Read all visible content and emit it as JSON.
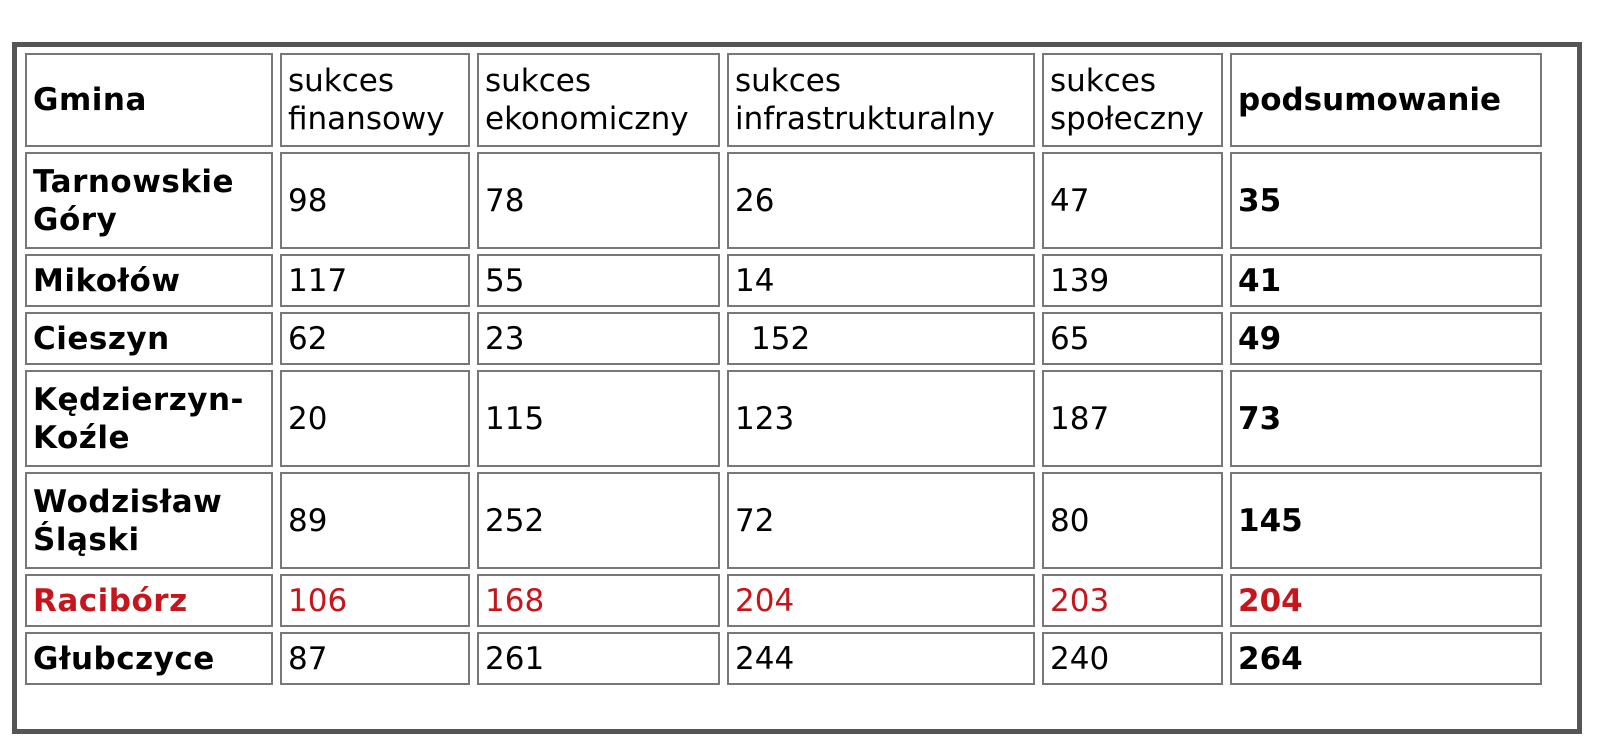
{
  "table": {
    "headers": [
      "Gmina",
      "sukces finansowy",
      "sukces ekonomiczny",
      "sukces infrastrukturalny",
      "sukces społeczny",
      "podsumowanie"
    ],
    "header_lines": {
      "c1": [
        "sukces",
        "finansowy"
      ],
      "c2": [
        "sukces",
        "ekonomiczny"
      ],
      "c3": [
        "sukces",
        "infrastrukturalny"
      ],
      "c4": [
        "sukces",
        "społeczny"
      ]
    },
    "rows": [
      {
        "gmina": [
          "Tarnowskie",
          "Góry"
        ],
        "finansowy": "98",
        "ekonomiczny": "78",
        "infrastrukturalny": "26",
        "spoleczny": "47",
        "podsumowanie": "35"
      },
      {
        "gmina": [
          "Mikołów"
        ],
        "finansowy": "117",
        "ekonomiczny": "55",
        "infrastrukturalny": "14",
        "spoleczny": "139",
        "podsumowanie": "41"
      },
      {
        "gmina": [
          "Cieszyn"
        ],
        "finansowy": "62",
        "ekonomiczny": "23",
        "infrastrukturalny": "152",
        "spoleczny": "65",
        "podsumowanie": "49"
      },
      {
        "gmina": [
          "Kędzierzyn-",
          "Koźle"
        ],
        "finansowy": "20",
        "ekonomiczny": "115",
        "infrastrukturalny": "123",
        "spoleczny": "187",
        "podsumowanie": "73"
      },
      {
        "gmina": [
          "Wodzisław",
          "Śląski"
        ],
        "finansowy": "89",
        "ekonomiczny": "252",
        "infrastrukturalny": "72",
        "spoleczny": "80",
        "podsumowanie": "145"
      },
      {
        "gmina": [
          "Racibórz"
        ],
        "finansowy": "106",
        "ekonomiczny": "168",
        "infrastrukturalny": "204",
        "spoleczny": "203",
        "podsumowanie": "204"
      },
      {
        "gmina": [
          "Głubczyce"
        ],
        "finansowy": "87",
        "ekonomiczny": "261",
        "infrastrukturalny": "244",
        "spoleczny": "240",
        "podsumowanie": "264"
      }
    ],
    "highlight_row": "Racibórz",
    "colors": {
      "highlight": "#c4161c",
      "frame": "#555555",
      "cell_border": "#777777",
      "text": "#000000"
    }
  }
}
